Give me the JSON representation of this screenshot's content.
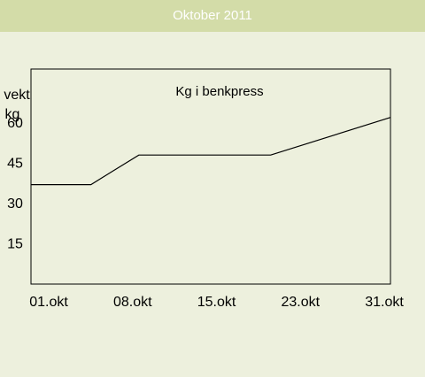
{
  "header": {
    "title": "Oktober 2011"
  },
  "colors": {
    "page_bg": "#edf0dd",
    "header_bg": "#d3dca8",
    "header_text": "#ffffff",
    "line": "#000000"
  },
  "chart_data": {
    "type": "line",
    "title": "Kg i benkpress",
    "ylabel_line1": "vekt",
    "ylabel_line2": "kg",
    "xlabel": "",
    "x_tick_labels": [
      "01.okt",
      "08.okt",
      "15.okt",
      "23.okt",
      "31.okt"
    ],
    "y_ticks": [
      15,
      30,
      45,
      60
    ],
    "y_tick_labels": [
      "15",
      "30",
      "45",
      "60"
    ],
    "x_range": [
      "2011-10-01",
      "2011-10-31"
    ],
    "ylim": [
      0,
      80
    ],
    "grid": false,
    "series": [
      {
        "x": [
          "2011-10-01",
          "2011-10-06",
          "2011-10-10",
          "2011-10-21",
          "2011-10-31"
        ],
        "y": [
          37,
          37,
          48,
          48,
          62
        ]
      }
    ]
  }
}
